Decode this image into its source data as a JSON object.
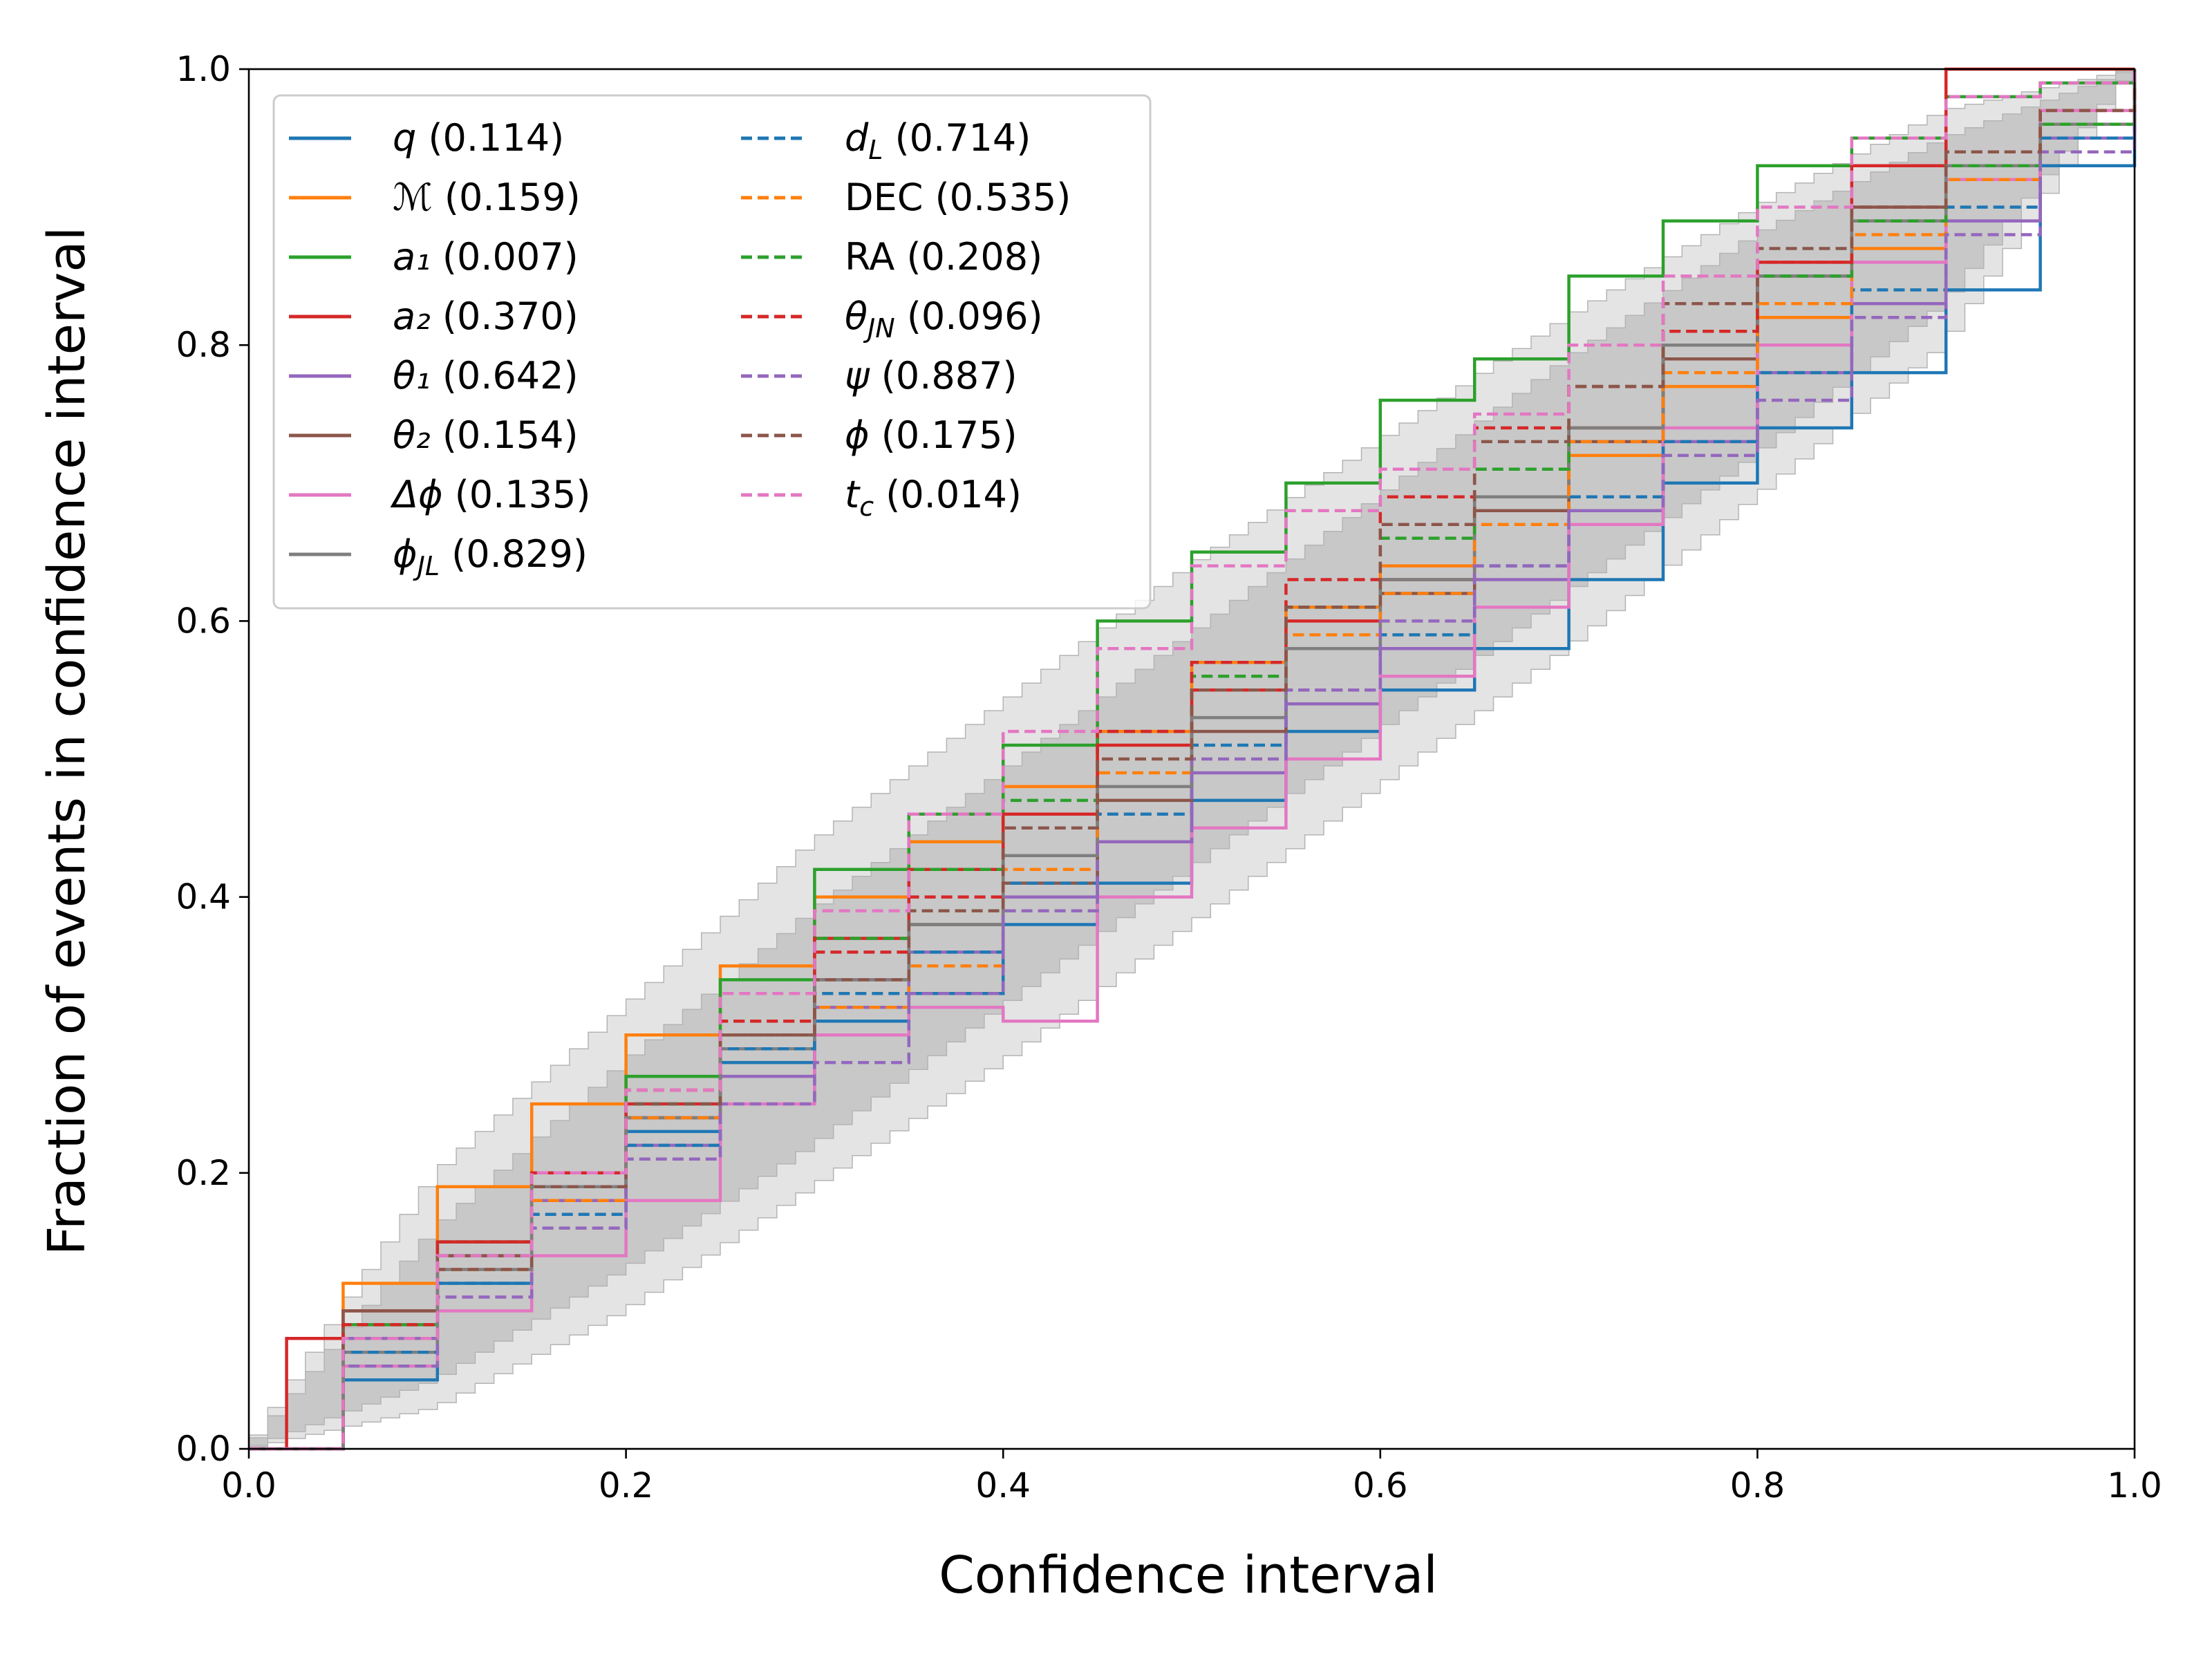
{
  "chart_data": {
    "type": "line",
    "title": "",
    "xlabel": "Confidence interval",
    "ylabel": "Fraction of events in confidence interval",
    "xlim": [
      0.0,
      1.0
    ],
    "ylim": [
      0.0,
      1.0
    ],
    "xticks": [
      "0.0",
      "0.2",
      "0.4",
      "0.6",
      "0.8",
      "1.0"
    ],
    "yticks": [
      "0.0",
      "0.2",
      "0.4",
      "0.6",
      "0.8",
      "1.0"
    ],
    "grid": false,
    "legend_position": "top-left",
    "confidence_bands": {
      "outer": {
        "x": [
          0,
          0.1,
          0.2,
          0.3,
          0.4,
          0.5,
          0.6,
          0.7,
          0.8,
          0.9,
          1
        ],
        "lower": [
          0,
          0.03,
          0.1,
          0.19,
          0.28,
          0.38,
          0.48,
          0.58,
          0.69,
          0.8,
          1
        ],
        "upper": [
          0,
          0.2,
          0.32,
          0.44,
          0.54,
          0.64,
          0.73,
          0.82,
          0.9,
          0.97,
          1
        ],
        "color": "#e4e4e4"
      },
      "inner": {
        "x": [
          0,
          0.1,
          0.2,
          0.3,
          0.4,
          0.5,
          0.6,
          0.7,
          0.8,
          0.9,
          1
        ],
        "lower": [
          0,
          0.05,
          0.13,
          0.22,
          0.32,
          0.42,
          0.52,
          0.62,
          0.72,
          0.83,
          1
        ],
        "upper": [
          0,
          0.16,
          0.28,
          0.39,
          0.49,
          0.59,
          0.69,
          0.79,
          0.88,
          0.95,
          1
        ],
        "color": "#c8c8c8"
      },
      "step_color": "#b4b4b4"
    },
    "series": [
      {
        "name": "q",
        "label": "(0.114)",
        "dash": false,
        "color": "#1f77b4",
        "x": [
          0,
          0.05,
          0.1,
          0.15,
          0.2,
          0.25,
          0.3,
          0.35,
          0.4,
          0.45,
          0.5,
          0.55,
          0.6,
          0.65,
          0.7,
          0.75,
          0.8,
          0.85,
          0.9,
          0.95,
          1
        ],
        "y": [
          0,
          0.05,
          0.12,
          0.18,
          0.23,
          0.28,
          0.31,
          0.33,
          0.38,
          0.41,
          0.47,
          0.52,
          0.55,
          0.58,
          0.63,
          0.7,
          0.74,
          0.78,
          0.84,
          0.93,
          1
        ]
      },
      {
        "name": "ℳ",
        "label": "(0.159)",
        "dash": false,
        "color": "#ff7f0e",
        "x": [
          0,
          0.05,
          0.1,
          0.15,
          0.2,
          0.25,
          0.3,
          0.35,
          0.4,
          0.45,
          0.5,
          0.55,
          0.6,
          0.65,
          0.7,
          0.75,
          0.8,
          0.85,
          0.9,
          0.95,
          1
        ],
        "y": [
          0,
          0.12,
          0.19,
          0.25,
          0.3,
          0.35,
          0.4,
          0.44,
          0.48,
          0.52,
          0.57,
          0.61,
          0.64,
          0.68,
          0.72,
          0.77,
          0.82,
          0.87,
          0.92,
          0.96,
          1
        ]
      },
      {
        "name": "a₁",
        "label": "(0.007)",
        "dash": false,
        "color": "#2ca02c",
        "x": [
          0,
          0.05,
          0.1,
          0.15,
          0.2,
          0.25,
          0.3,
          0.35,
          0.4,
          0.45,
          0.5,
          0.55,
          0.6,
          0.65,
          0.7,
          0.75,
          0.8,
          0.85,
          0.9,
          0.95,
          1
        ],
        "y": [
          0,
          0.09,
          0.15,
          0.2,
          0.27,
          0.34,
          0.42,
          0.46,
          0.51,
          0.6,
          0.65,
          0.7,
          0.76,
          0.79,
          0.85,
          0.89,
          0.93,
          0.95,
          0.98,
          0.99,
          1
        ]
      },
      {
        "name": "a₂",
        "label": "(0.370)",
        "dash": false,
        "color": "#d62728",
        "x": [
          0,
          0.02,
          0.05,
          0.1,
          0.15,
          0.2,
          0.25,
          0.3,
          0.35,
          0.4,
          0.45,
          0.5,
          0.55,
          0.6,
          0.65,
          0.7,
          0.75,
          0.8,
          0.85,
          0.9,
          0.95,
          1
        ],
        "y": [
          0,
          0.08,
          0.1,
          0.15,
          0.2,
          0.25,
          0.3,
          0.37,
          0.42,
          0.46,
          0.51,
          0.55,
          0.6,
          0.63,
          0.69,
          0.74,
          0.8,
          0.86,
          0.93,
          1.0,
          1.0,
          1
        ]
      },
      {
        "name": "θ₁",
        "label": "(0.642)",
        "dash": false,
        "color": "#9467bd",
        "x": [
          0,
          0.05,
          0.1,
          0.15,
          0.2,
          0.25,
          0.3,
          0.35,
          0.4,
          0.45,
          0.5,
          0.55,
          0.6,
          0.65,
          0.7,
          0.75,
          0.8,
          0.85,
          0.9,
          0.95,
          1
        ],
        "y": [
          0,
          0.08,
          0.14,
          0.18,
          0.22,
          0.27,
          0.32,
          0.36,
          0.4,
          0.44,
          0.49,
          0.54,
          0.58,
          0.63,
          0.68,
          0.73,
          0.78,
          0.83,
          0.89,
          0.95,
          1
        ]
      },
      {
        "name": "θ₂",
        "label": "(0.154)",
        "dash": false,
        "color": "#8c564b",
        "x": [
          0,
          0.05,
          0.1,
          0.15,
          0.2,
          0.25,
          0.3,
          0.35,
          0.4,
          0.45,
          0.5,
          0.55,
          0.6,
          0.65,
          0.7,
          0.75,
          0.8,
          0.85,
          0.9,
          0.95,
          1
        ],
        "y": [
          0,
          0.1,
          0.14,
          0.19,
          0.24,
          0.3,
          0.34,
          0.38,
          0.41,
          0.47,
          0.52,
          0.58,
          0.62,
          0.68,
          0.73,
          0.79,
          0.85,
          0.9,
          0.93,
          0.96,
          1
        ]
      },
      {
        "name": "Δϕ",
        "label": "(0.135)",
        "dash": false,
        "color": "#e377c2",
        "x": [
          0,
          0.05,
          0.1,
          0.15,
          0.2,
          0.25,
          0.3,
          0.35,
          0.4,
          0.45,
          0.5,
          0.55,
          0.6,
          0.65,
          0.7,
          0.75,
          0.8,
          0.85,
          0.9,
          0.95,
          1
        ],
        "y": [
          0,
          0.06,
          0.1,
          0.14,
          0.18,
          0.25,
          0.3,
          0.32,
          0.31,
          0.4,
          0.45,
          0.5,
          0.56,
          0.61,
          0.67,
          0.74,
          0.8,
          0.86,
          0.92,
          0.97,
          1
        ]
      },
      {
        "name": "ϕ_JL",
        "label": "(0.829)",
        "dash": false,
        "color": "#7f7f7f",
        "x": [
          0,
          0.05,
          0.1,
          0.15,
          0.2,
          0.25,
          0.3,
          0.35,
          0.4,
          0.45,
          0.5,
          0.55,
          0.6,
          0.65,
          0.7,
          0.75,
          0.8,
          0.85,
          0.9,
          0.95,
          1
        ],
        "y": [
          0,
          0.07,
          0.13,
          0.19,
          0.24,
          0.29,
          0.34,
          0.38,
          0.43,
          0.48,
          0.53,
          0.58,
          0.63,
          0.69,
          0.74,
          0.8,
          0.85,
          0.89,
          0.93,
          0.96,
          1
        ]
      },
      {
        "name": "d_L",
        "label": "(0.714)",
        "dash": true,
        "color": "#1f77b4",
        "x": [
          0,
          0.05,
          0.1,
          0.15,
          0.2,
          0.25,
          0.3,
          0.35,
          0.4,
          0.45,
          0.5,
          0.55,
          0.6,
          0.65,
          0.7,
          0.75,
          0.8,
          0.85,
          0.9,
          0.95,
          1
        ],
        "y": [
          0,
          0.07,
          0.12,
          0.17,
          0.22,
          0.29,
          0.33,
          0.36,
          0.41,
          0.46,
          0.51,
          0.55,
          0.59,
          0.64,
          0.69,
          0.73,
          0.78,
          0.84,
          0.9,
          0.95,
          1
        ]
      },
      {
        "name": "DEC",
        "label": "(0.535)",
        "dash": true,
        "color": "#ff7f0e",
        "x": [
          0,
          0.05,
          0.1,
          0.15,
          0.2,
          0.25,
          0.3,
          0.35,
          0.4,
          0.45,
          0.5,
          0.55,
          0.6,
          0.65,
          0.7,
          0.75,
          0.8,
          0.85,
          0.9,
          0.95,
          1
        ],
        "y": [
          0,
          0.08,
          0.13,
          0.18,
          0.24,
          0.3,
          0.32,
          0.35,
          0.42,
          0.49,
          0.55,
          0.59,
          0.62,
          0.67,
          0.73,
          0.78,
          0.83,
          0.88,
          0.92,
          0.96,
          1
        ]
      },
      {
        "name": "RA",
        "label": "(0.208)",
        "dash": true,
        "color": "#2ca02c",
        "x": [
          0,
          0.05,
          0.1,
          0.15,
          0.2,
          0.25,
          0.3,
          0.35,
          0.4,
          0.45,
          0.5,
          0.55,
          0.6,
          0.65,
          0.7,
          0.75,
          0.8,
          0.85,
          0.9,
          0.95,
          1
        ],
        "y": [
          0,
          0.09,
          0.15,
          0.2,
          0.25,
          0.31,
          0.37,
          0.42,
          0.47,
          0.52,
          0.56,
          0.61,
          0.66,
          0.71,
          0.77,
          0.81,
          0.85,
          0.89,
          0.93,
          0.96,
          1
        ]
      },
      {
        "name": "θ_JN",
        "label": "(0.096)",
        "dash": true,
        "color": "#d62728",
        "x": [
          0,
          0.05,
          0.1,
          0.15,
          0.2,
          0.25,
          0.3,
          0.35,
          0.4,
          0.45,
          0.5,
          0.55,
          0.6,
          0.65,
          0.7,
          0.75,
          0.8,
          0.85,
          0.9,
          0.95,
          1
        ],
        "y": [
          0,
          0.09,
          0.15,
          0.2,
          0.26,
          0.31,
          0.36,
          0.4,
          0.46,
          0.52,
          0.57,
          0.63,
          0.69,
          0.74,
          0.77,
          0.81,
          0.86,
          0.9,
          0.94,
          0.97,
          1
        ]
      },
      {
        "name": "ψ",
        "label": "(0.887)",
        "dash": true,
        "color": "#9467bd",
        "x": [
          0,
          0.05,
          0.1,
          0.15,
          0.2,
          0.25,
          0.3,
          0.35,
          0.4,
          0.45,
          0.5,
          0.55,
          0.6,
          0.65,
          0.7,
          0.75,
          0.8,
          0.85,
          0.9,
          0.95,
          1
        ],
        "y": [
          0,
          0.06,
          0.11,
          0.16,
          0.21,
          0.25,
          0.28,
          0.33,
          0.39,
          0.44,
          0.5,
          0.55,
          0.6,
          0.64,
          0.68,
          0.72,
          0.76,
          0.82,
          0.88,
          0.94,
          1
        ]
      },
      {
        "name": "ϕ",
        "label": "(0.175)",
        "dash": true,
        "color": "#8c564b",
        "x": [
          0,
          0.05,
          0.1,
          0.15,
          0.2,
          0.25,
          0.3,
          0.35,
          0.4,
          0.45,
          0.5,
          0.55,
          0.6,
          0.65,
          0.7,
          0.75,
          0.8,
          0.85,
          0.9,
          0.95,
          1
        ],
        "y": [
          0,
          0.08,
          0.13,
          0.19,
          0.25,
          0.3,
          0.34,
          0.39,
          0.45,
          0.5,
          0.55,
          0.61,
          0.67,
          0.73,
          0.77,
          0.83,
          0.87,
          0.9,
          0.94,
          0.97,
          1
        ]
      },
      {
        "name": "t_c",
        "label": "(0.014)",
        "dash": true,
        "color": "#e377c2",
        "x": [
          0,
          0.05,
          0.1,
          0.15,
          0.2,
          0.25,
          0.3,
          0.35,
          0.4,
          0.45,
          0.5,
          0.55,
          0.6,
          0.65,
          0.7,
          0.75,
          0.8,
          0.85,
          0.9,
          0.95,
          1
        ],
        "y": [
          0,
          0.08,
          0.14,
          0.2,
          0.26,
          0.33,
          0.39,
          0.46,
          0.52,
          0.58,
          0.64,
          0.68,
          0.71,
          0.75,
          0.8,
          0.85,
          0.9,
          0.95,
          0.98,
          0.99,
          1
        ]
      }
    ]
  }
}
